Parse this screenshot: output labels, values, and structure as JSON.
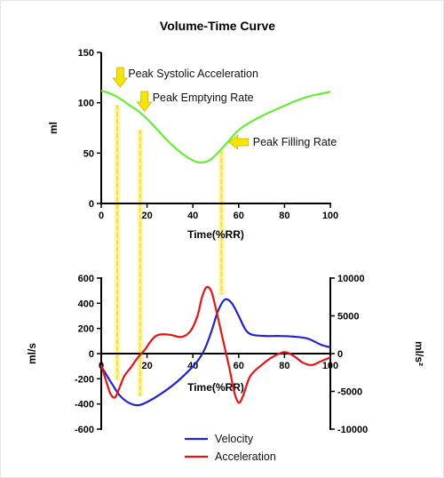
{
  "chart_data": [
    {
      "type": "line",
      "title": "Volume-Time Curve",
      "xlabel": "Time(%RR)",
      "ylabel": "ml",
      "xlim": [
        0,
        100
      ],
      "ylim": [
        0,
        150
      ],
      "xticks": [
        "0",
        "20",
        "40",
        "60",
        "80",
        "100"
      ],
      "yticks": [
        "0",
        "50",
        "100",
        "150"
      ],
      "series": [
        {
          "color": "#66ee33",
          "points": [
            [
              0,
              112
            ],
            [
              3,
              110
            ],
            [
              6,
              107
            ],
            [
              9,
              103
            ],
            [
              12,
              98
            ],
            [
              16,
              92
            ],
            [
              20,
              84
            ],
            [
              25,
              72
            ],
            [
              30,
              60
            ],
            [
              35,
              50
            ],
            [
              39,
              44
            ],
            [
              42,
              41
            ],
            [
              45,
              41
            ],
            [
              48,
              44
            ],
            [
              52,
              53
            ],
            [
              56,
              63
            ],
            [
              60,
              73
            ],
            [
              66,
              82
            ],
            [
              72,
              89
            ],
            [
              78,
              95
            ],
            [
              84,
              101
            ],
            [
              90,
              106
            ],
            [
              96,
              109
            ],
            [
              100,
              111
            ]
          ]
        }
      ],
      "annotations": [
        {
          "text": "Peak Systolic Acceleration",
          "x": 4
        },
        {
          "text": "Peak Emptying Rate",
          "x": 15
        },
        {
          "text": "Peak Filling Rate",
          "x": 53
        }
      ]
    },
    {
      "type": "line",
      "xlabel": "Time(%RR)",
      "ylabel": "ml/s",
      "ylabel_right": "ml/s²",
      "xlim": [
        0,
        100
      ],
      "ylim": [
        -600,
        600
      ],
      "ylim_right": [
        -10000,
        10000
      ],
      "xticks": [
        "0",
        "20",
        "40",
        "60",
        "80",
        "100"
      ],
      "yticks": [
        "-600",
        "-400",
        "-200",
        "0",
        "200",
        "400",
        "600"
      ],
      "yticks_right": [
        "-10000",
        "-5000",
        "0",
        "5000",
        "10000"
      ],
      "series": [
        {
          "name": "Velocity",
          "color": "#2222dd",
          "axis": "left",
          "points": [
            [
              0,
              -100
            ],
            [
              4,
              -220
            ],
            [
              8,
              -330
            ],
            [
              12,
              -390
            ],
            [
              16,
              -410
            ],
            [
              20,
              -385
            ],
            [
              26,
              -320
            ],
            [
              32,
              -240
            ],
            [
              38,
              -140
            ],
            [
              42,
              -60
            ],
            [
              45,
              30
            ],
            [
              48,
              170
            ],
            [
              51,
              340
            ],
            [
              54,
              430
            ],
            [
              57,
              400
            ],
            [
              60,
              300
            ],
            [
              63,
              190
            ],
            [
              66,
              150
            ],
            [
              72,
              140
            ],
            [
              78,
              140
            ],
            [
              84,
              135
            ],
            [
              90,
              120
            ],
            [
              96,
              70
            ],
            [
              100,
              50
            ]
          ]
        },
        {
          "name": "Acceleration",
          "color": "#ee1111",
          "axis": "right",
          "points": [
            [
              0,
              -1500
            ],
            [
              2,
              -3500
            ],
            [
              4,
              -5300
            ],
            [
              6,
              -5800
            ],
            [
              8,
              -4500
            ],
            [
              10,
              -3000
            ],
            [
              13,
              -1800
            ],
            [
              16,
              -500
            ],
            [
              19,
              500
            ],
            [
              22,
              1800
            ],
            [
              25,
              2500
            ],
            [
              30,
              2500
            ],
            [
              35,
              2200
            ],
            [
              39,
              3000
            ],
            [
              42,
              5000
            ],
            [
              44,
              7500
            ],
            [
              46,
              8800
            ],
            [
              48,
              8300
            ],
            [
              50,
              6000
            ],
            [
              53,
              2000
            ],
            [
              56,
              -2000
            ],
            [
              58,
              -5000
            ],
            [
              60,
              -6500
            ],
            [
              62,
              -5500
            ],
            [
              65,
              -3000
            ],
            [
              70,
              -1500
            ],
            [
              75,
              -400
            ],
            [
              80,
              200
            ],
            [
              84,
              -300
            ],
            [
              88,
              -1200
            ],
            [
              92,
              -1500
            ],
            [
              96,
              -1000
            ],
            [
              100,
              -500
            ]
          ]
        }
      ]
    }
  ]
}
